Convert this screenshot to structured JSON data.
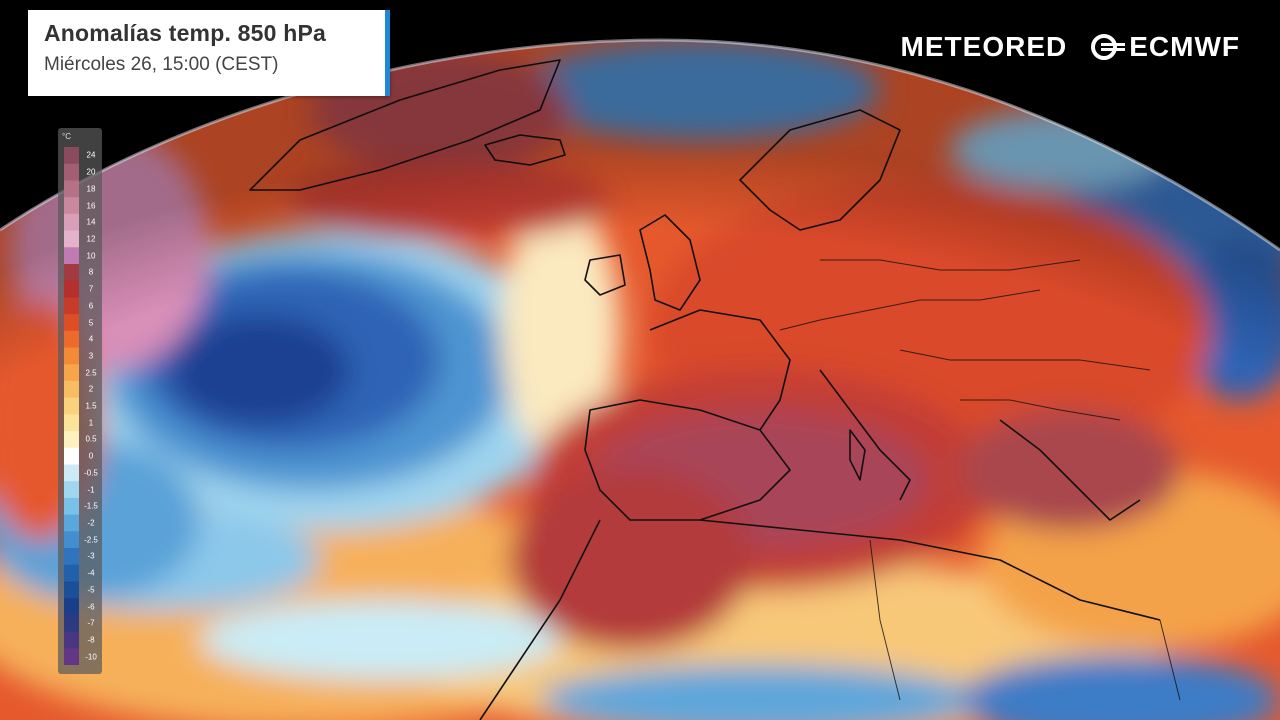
{
  "header": {
    "title": "Anomalías temp. 850 hPa",
    "subtitle": "Miércoles 26, 15:00 (CEST)"
  },
  "logos": {
    "meteored": "METEORED",
    "ecmwf": "ECMWF"
  },
  "legend": {
    "unit": "°C",
    "labels": [
      "24",
      "20",
      "18",
      "16",
      "14",
      "12",
      "10",
      "8",
      "7",
      "6",
      "5",
      "4",
      "3",
      "2.5",
      "2",
      "1.5",
      "1",
      "0.5",
      "0",
      "-0.5",
      "-1",
      "-1.5",
      "-2",
      "-2.5",
      "-3",
      "-4",
      "-5",
      "-6",
      "-7",
      "-8",
      "-10"
    ],
    "colors": [
      "#8a4b5c",
      "#a25e72",
      "#b57186",
      "#c9889e",
      "#d99fb8",
      "#e3b3cc",
      "#c07cb2",
      "#a13b3f",
      "#b3302d",
      "#c83b28",
      "#de4e25",
      "#ec6a2a",
      "#f28a38",
      "#f6a54b",
      "#f8bd62",
      "#fad27c",
      "#fbe39a",
      "#fdf1c0",
      "#ffffff",
      "#cdebf6",
      "#9fd7ef",
      "#79c1e6",
      "#5aa8db",
      "#418fce",
      "#2f74bd",
      "#2160aa",
      "#1b4f98",
      "#1a3f88",
      "#2d3a80",
      "#493781",
      "#643686"
    ]
  },
  "colors": {
    "ocean_space": "#000000",
    "warm_core": "#9e4456",
    "warm": "#d9482a",
    "mild": "#f4a24a",
    "cold": "#2f63b5",
    "deep_cold": "#1f3f92"
  }
}
